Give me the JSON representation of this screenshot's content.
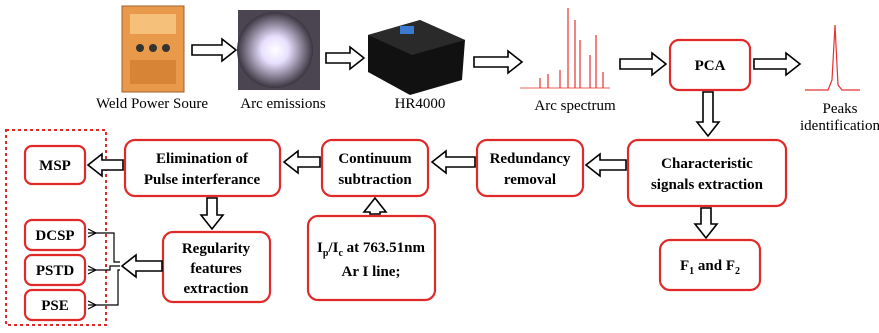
{
  "images": {
    "weld_power_source": "Weld Power Soure",
    "arc_emissions": "Arc emissions",
    "hr4000": "HR4000",
    "arc_spectrum": "Arc spectrum",
    "peaks_identification": [
      "Peaks",
      "identification"
    ]
  },
  "nodes": {
    "pca": [
      "PCA"
    ],
    "characteristic": [
      "Characteristic",
      "signals extraction"
    ],
    "redundancy": [
      "Redundancy",
      "removal"
    ],
    "continuum": [
      "Continuum",
      "subtraction"
    ],
    "elimination": [
      "Elimination of",
      "Pulse interferance"
    ],
    "msp": [
      "MSP"
    ],
    "regularity": [
      "Regularity",
      "features",
      "extraction"
    ],
    "dcsp": [
      "DCSP"
    ],
    "pstd": [
      "PSTD"
    ],
    "pse": [
      "PSE"
    ]
  },
  "ratio_input": {
    "line1": [
      "I",
      "p",
      "/I",
      "c",
      " at 763.51nm"
    ],
    "line2": "Ar I line;"
  },
  "features": [
    "F",
    "1",
    " and F",
    "2"
  ]
}
